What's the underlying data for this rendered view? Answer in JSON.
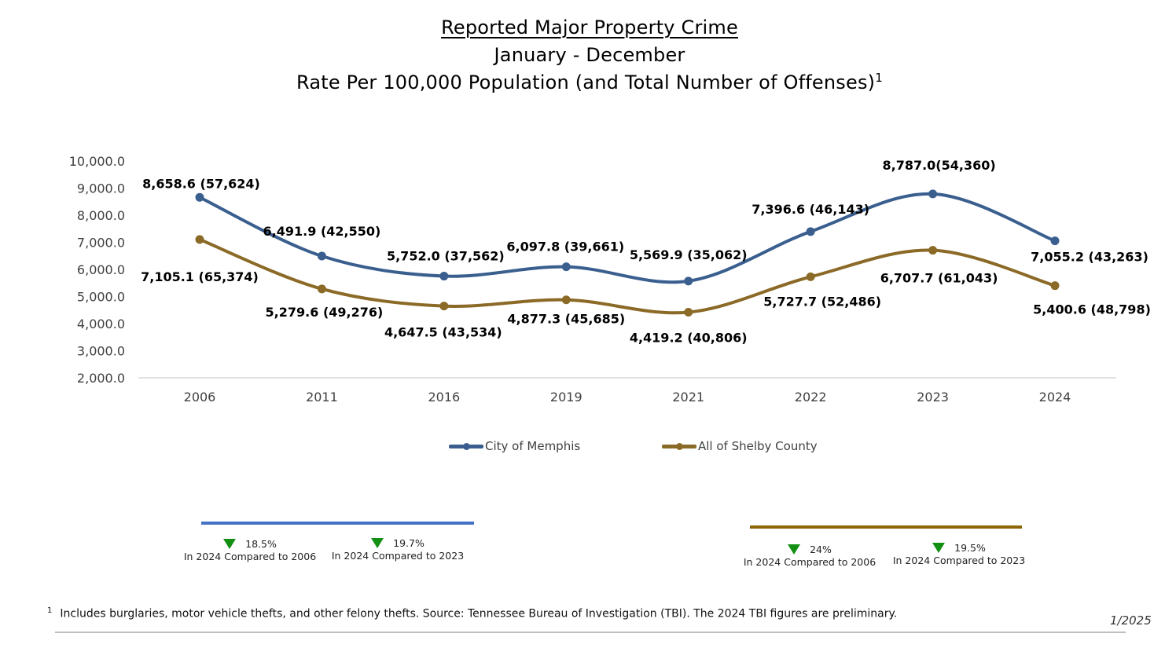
{
  "header": {
    "title": "Reported Major Property Crime",
    "subtitle": "January - December",
    "subtitle2": "Rate Per 100,000 Population (and Total Number of Offenses)",
    "subtitle2_sup": "1"
  },
  "chart_data": {
    "type": "line",
    "title": "Reported Major Property Crime",
    "subtitle": "January - December; Rate Per 100,000 Population (and Total Number of Offenses)",
    "xlabel": "",
    "ylabel": "",
    "categories": [
      "2006",
      "2011",
      "2016",
      "2019",
      "2021",
      "2022",
      "2023",
      "2024"
    ],
    "ylim": [
      2000,
      10000
    ],
    "yticks": [
      2000,
      3000,
      4000,
      5000,
      6000,
      7000,
      8000,
      9000,
      10000
    ],
    "ytick_labels": [
      "2,000.0",
      "3,000.0",
      "4,000.0",
      "5,000.0",
      "6,000.0",
      "7,000.0",
      "8,000.0",
      "9,000.0",
      "10,000.0"
    ],
    "grid": false,
    "smoothed": true,
    "legend_position": "bottom",
    "series": [
      {
        "name": "City of Memphis",
        "color": "#3a5f8f",
        "values": [
          8658.6,
          6491.9,
          5752.0,
          6097.8,
          5569.9,
          7396.6,
          8787.0,
          7055.2
        ],
        "offenses": [
          57624,
          42550,
          37562,
          39661,
          35062,
          46143,
          54360,
          43263
        ],
        "labels": [
          "8,658.6 (57,624)",
          "6,491.9 (42,550)",
          "5,752.0 (37,562)",
          "6,097.8  (39,661)",
          "5,569.9 (35,062)",
          "7,396.6 (46,143)",
          "8,787.0(54,360)",
          "7,055.2 (43,263)"
        ]
      },
      {
        "name": "All of Shelby County",
        "color": "#8b6a27",
        "values": [
          7105.1,
          5279.6,
          4647.5,
          4877.3,
          4419.2,
          5727.7,
          6707.7,
          5400.6
        ],
        "offenses": [
          65374,
          49276,
          43534,
          45685,
          40806,
          52486,
          61043,
          48798
        ],
        "labels": [
          "7,105.1 (65,374)",
          "5,279.6 (49,276)",
          "4,647.5 (43,534)",
          "4,877.3 (45,685)",
          "4,419.2 (40,806)",
          "5,727.7 (52,486)",
          "6,707.7 (61,043)",
          "5,400.6  (48,798)"
        ]
      }
    ]
  },
  "summary": {
    "memphis": {
      "color": "#4472c4",
      "items": [
        {
          "direction": "down",
          "percent": "18.5%",
          "caption": "In 2024 Compared to 2006"
        },
        {
          "direction": "down",
          "percent": "19.7%",
          "caption": "In 2024 Compared to 2023"
        }
      ]
    },
    "shelby": {
      "color": "#8b6508",
      "items": [
        {
          "direction": "down",
          "percent": "24%",
          "caption": "In 2024 Compared to 2006"
        },
        {
          "direction": "down",
          "percent": "19.5%",
          "caption": "In 2024 Compared to 2023"
        }
      ]
    },
    "arrow_color": "#139013"
  },
  "footer": {
    "footnote_mark": "1",
    "footnote": "Includes burglaries, motor vehicle thefts, and other felony thefts.  Source: Tennessee Bureau of Investigation (TBI). The 2024 TBI figures are preliminary.",
    "date": "1/2025"
  }
}
